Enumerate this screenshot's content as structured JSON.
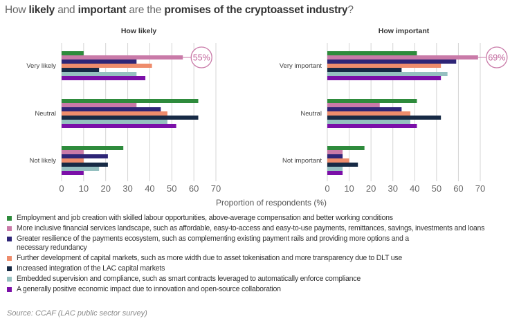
{
  "title": [
    {
      "text": "How ",
      "bold": false
    },
    {
      "text": "likely",
      "bold": true
    },
    {
      "text": " and ",
      "bold": false
    },
    {
      "text": "important",
      "bold": true
    },
    {
      "text": " are the ",
      "bold": false
    },
    {
      "text": "promises of the cryptoasset industry",
      "bold": true
    },
    {
      "text": "?",
      "bold": false
    }
  ],
  "chart_data": [
    {
      "type": "bar",
      "orientation": "horizontal",
      "title": "How likely",
      "categories": [
        "Very likely",
        "Neutral",
        "Not likely"
      ],
      "xlim": [
        0,
        70
      ],
      "xticks": [
        "0",
        "10",
        "20",
        "30",
        "40",
        "50",
        "60",
        "70"
      ],
      "grid": true,
      "series": [
        {
          "name": "Employment and job creation with skilled labour opportunities, above-average compensation and better working conditions",
          "values": [
            10,
            62,
            28
          ]
        },
        {
          "name": "More inclusive financial services landscape, such as affordable, easy-to-access and easy-to-use payments, remittances, savings, investments and loans",
          "values": [
            55,
            34,
            10
          ]
        },
        {
          "name": "Greater resilience of the payments ecosystem, such as complementing existing payment rails and providing more options and a necessary redundancy",
          "values": [
            34,
            45,
            21
          ]
        },
        {
          "name": "Further development of capital markets, such as more width due to asset tokenisation and more transparency due to DLT use",
          "values": [
            41,
            48,
            10
          ]
        },
        {
          "name": "Increased integration of the LAC capital markets",
          "values": [
            17,
            62,
            21
          ]
        },
        {
          "name": "Embedded supervision and compliance, such as smart contracts leveraged to automatically enforce compliance",
          "values": [
            34,
            48,
            17
          ]
        },
        {
          "name": "A generally positive economic impact due to innovation and open-source collaboration",
          "values": [
            38,
            52,
            10
          ]
        }
      ],
      "annotation": {
        "text": "55%",
        "category": "Very likely",
        "series_index": 1
      }
    },
    {
      "type": "bar",
      "orientation": "horizontal",
      "title": "How important",
      "categories": [
        "Very important",
        "Neutral",
        "Not important"
      ],
      "xlim": [
        0,
        70
      ],
      "xticks": [
        "0",
        "10",
        "20",
        "30",
        "40",
        "50",
        "60",
        "70"
      ],
      "grid": true,
      "series": [
        {
          "values": [
            41,
            41,
            17
          ]
        },
        {
          "values": [
            69,
            24,
            7
          ]
        },
        {
          "values": [
            59,
            34,
            7
          ]
        },
        {
          "values": [
            52,
            38,
            10
          ]
        },
        {
          "values": [
            34,
            52,
            14
          ]
        },
        {
          "values": [
            55,
            38,
            7
          ]
        },
        {
          "values": [
            52,
            41,
            7
          ]
        }
      ],
      "annotation": {
        "text": "69%",
        "category": "Very important",
        "series_index": 1
      }
    }
  ],
  "xlabel": "Proportion of respondents (%)",
  "colors": [
    "#2e8b3c",
    "#c97aa8",
    "#2e2577",
    "#ee8c6c",
    "#172a45",
    "#95c0c0",
    "#7b0fa8"
  ],
  "legend": [
    "Employment and job creation with skilled labour opportunities, above-average compensation and better working conditions",
    "More inclusive financial services landscape, such as affordable, easy-to-access and easy-to-use payments, remittances, savings, investments and loans",
    "Greater resilience of the payments ecosystem, such as complementing existing payment rails and providing more options and a necessary redundancy",
    "Further development of capital markets, such as more width due to asset tokenisation and more transparency due to DLT use",
    "Increased integration of the LAC capital markets",
    "Embedded supervision and compliance, such as smart contracts leveraged to automatically enforce compliance",
    "A generally positive economic impact due to innovation and open-source collaboration"
  ],
  "source": "Source: CCAF (LAC public sector survey)"
}
